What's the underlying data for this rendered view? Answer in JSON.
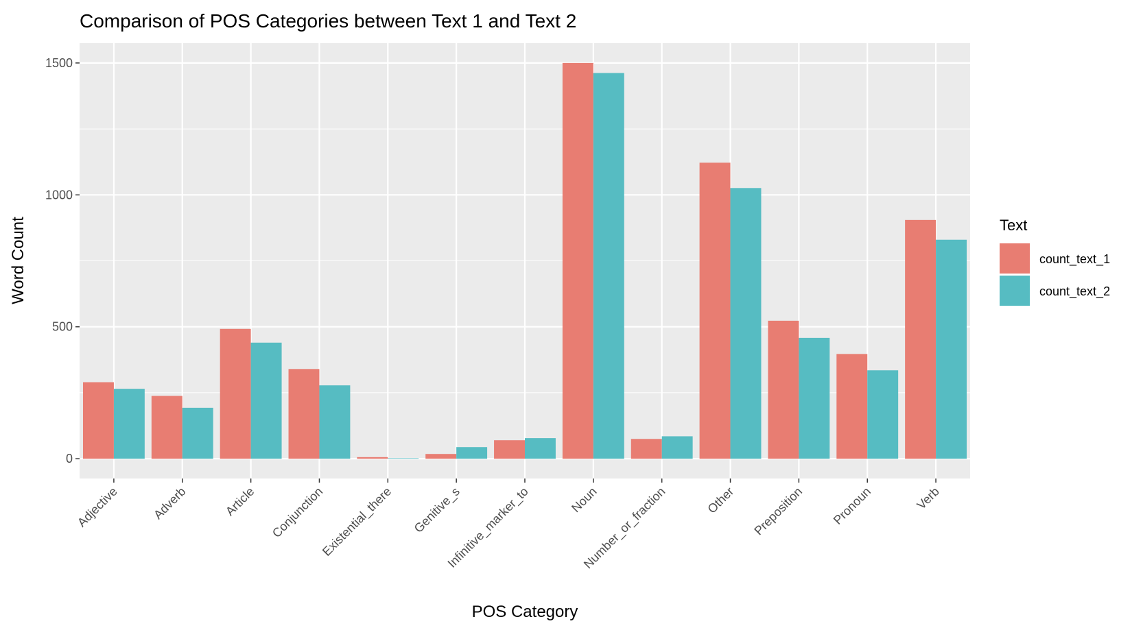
{
  "chart_data": {
    "type": "bar",
    "title": "Comparison of POS Categories between Text 1 and Text 2",
    "xlabel": "POS Category",
    "ylabel": "Word Count",
    "categories": [
      "Adjective",
      "Adverb",
      "Article",
      "Conjunction",
      "Existential_there",
      "Genitive_s",
      "Infinitive_marker_to",
      "Noun",
      "Number_or_fraction",
      "Other",
      "Preposition",
      "Pronoun",
      "Verb"
    ],
    "series": [
      {
        "name": "count_text_1",
        "color": "#E87D72",
        "values": [
          290,
          238,
          492,
          340,
          6,
          18,
          70,
          1500,
          75,
          1122,
          523,
          397,
          905
        ]
      },
      {
        "name": "count_text_2",
        "color": "#56BCC2",
        "values": [
          265,
          193,
          440,
          278,
          2,
          44,
          78,
          1462,
          85,
          1026,
          458,
          335,
          830
        ]
      }
    ],
    "ylim": [
      -75,
      1575
    ],
    "yticks": [
      0,
      500,
      1000,
      1500
    ],
    "legend": {
      "title": "Text",
      "position": "right"
    },
    "grid": true,
    "panel_background": "#EBEBEB",
    "grid_color": "#FFFFFF"
  }
}
